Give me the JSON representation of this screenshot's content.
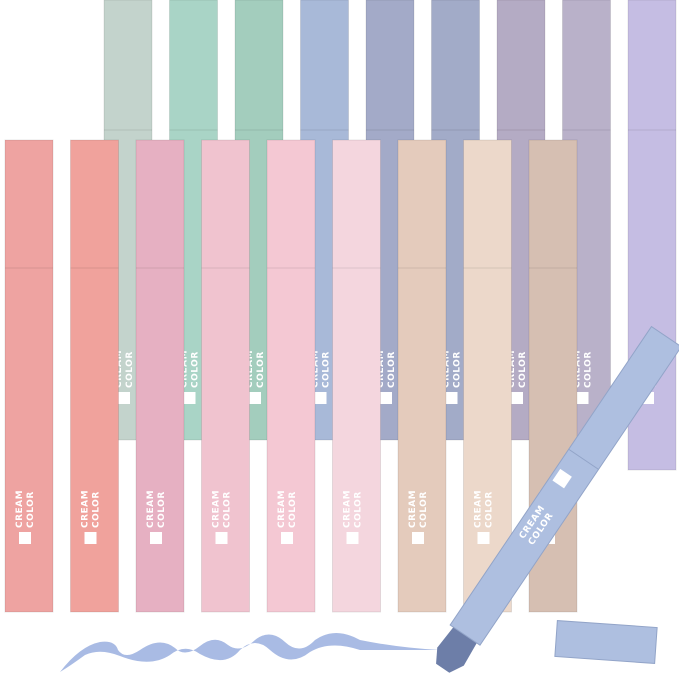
{
  "pen_label": {
    "line1": "CREAM",
    "line2": "COLOR"
  }
}
